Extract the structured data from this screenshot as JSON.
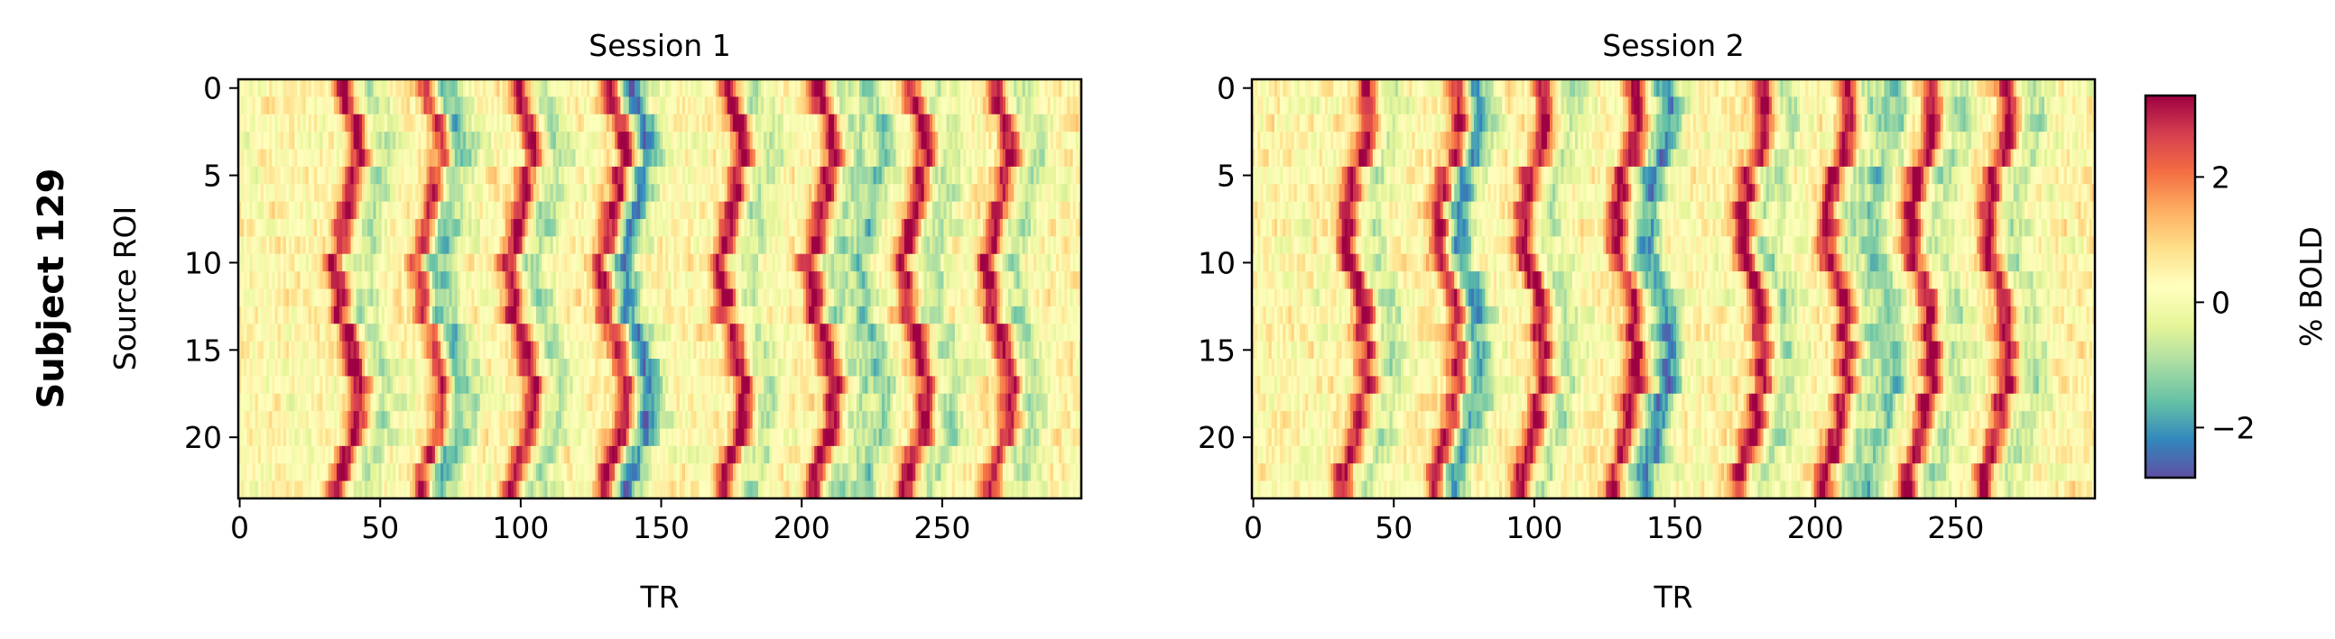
{
  "figure": {
    "row_label": "Subject 129"
  },
  "chart_data": [
    {
      "type": "heatmap",
      "title": "Session 1",
      "xlabel": "TR",
      "ylabel": "Source ROI",
      "x_range": [
        0,
        299
      ],
      "y_range": [
        0,
        23
      ],
      "y_inverted": true,
      "n_rows": 24,
      "n_cols": 300,
      "x_ticks": [
        0,
        50,
        100,
        150,
        200,
        250
      ],
      "y_ticks": [
        0,
        5,
        10,
        15,
        20
      ],
      "peak_columns_approx": [
        38,
        68,
        100,
        133,
        175,
        207,
        240,
        270
      ],
      "trough_columns_approx": [
        72,
        140,
        225
      ]
    },
    {
      "type": "heatmap",
      "title": "Session 2",
      "xlabel": "TR",
      "ylabel": "",
      "x_range": [
        0,
        299
      ],
      "y_range": [
        0,
        23
      ],
      "y_inverted": true,
      "n_rows": 24,
      "n_cols": 300,
      "x_ticks": [
        0,
        50,
        100,
        150,
        200,
        250
      ],
      "y_ticks": [
        0,
        5,
        10,
        15,
        20
      ],
      "peak_columns_approx": [
        37,
        70,
        100,
        133,
        178,
        208,
        238,
        265
      ],
      "trough_columns_approx": [
        75,
        145,
        225
      ]
    }
  ],
  "colorbar": {
    "label": "% BOLD",
    "colormap": "Spectral_r",
    "vmin": -2.8,
    "vmax": 3.3,
    "ticks": [
      2,
      0,
      -2
    ],
    "tick_labels": [
      "2",
      "0",
      "−2"
    ]
  }
}
